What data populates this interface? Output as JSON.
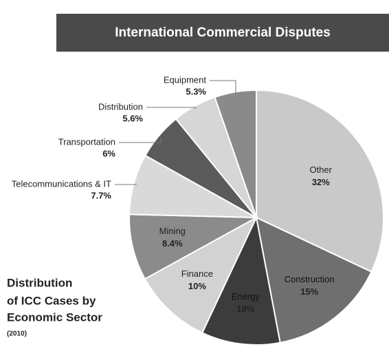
{
  "chart_data": {
    "type": "pie",
    "title": "International Commercial Disputes",
    "subtitle": [
      "Distribution",
      "of ICC Cases by",
      "Economic Sector"
    ],
    "note": "(2010)",
    "categories": [
      "Other",
      "Construction",
      "Energy",
      "Finance",
      "Mining",
      "Telecommunications & IT",
      "Transportation",
      "Distribution",
      "Equipment"
    ],
    "values": [
      32,
      15,
      10,
      10,
      8.4,
      7.7,
      6,
      5.6,
      5.3
    ],
    "value_labels": [
      "32%",
      "15%",
      "10%",
      "10%",
      "8.4%",
      "7.7%",
      "6%",
      "5.6%",
      "5.3%"
    ],
    "colors": [
      "#c9c9c9",
      "#6f6f6f",
      "#3c3c3c",
      "#d2d2d2",
      "#8b8b8b",
      "#d9d9d9",
      "#5a5a5a",
      "#d6d6d6",
      "#8a8a8a"
    ]
  }
}
